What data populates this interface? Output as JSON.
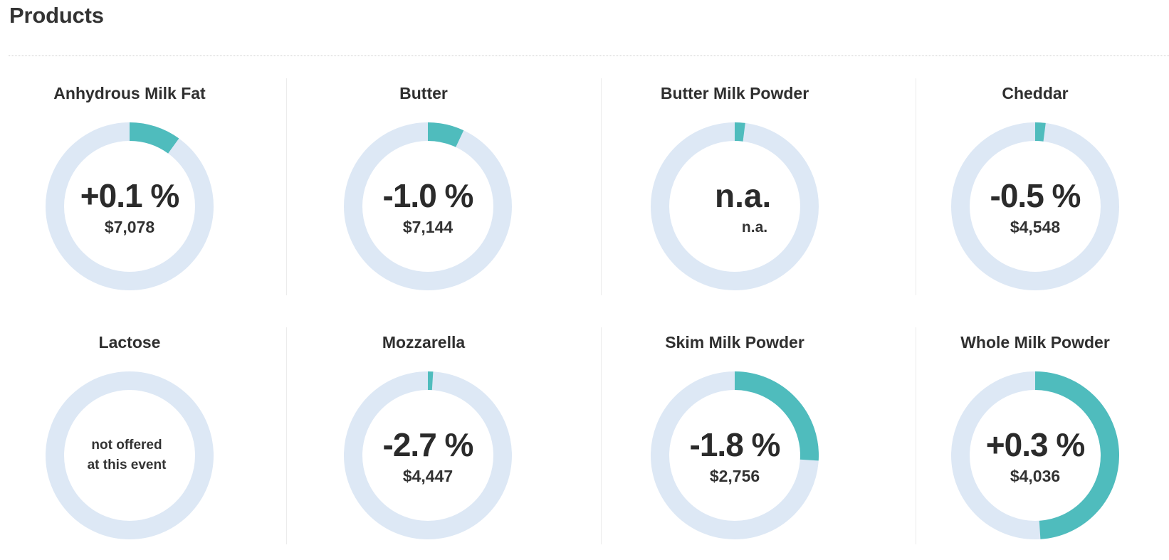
{
  "page": {
    "title": "Products"
  },
  "colors": {
    "ring_track": "#dde8f5",
    "ring_fill": "#4fbcbd"
  },
  "products": [
    {
      "name": "Anhydrous Milk Fat",
      "change": "+0.1 %",
      "price": "$7,078",
      "fill_fraction": 0.1
    },
    {
      "name": "Butter",
      "change": "-1.0 %",
      "price": "$7,144",
      "fill_fraction": 0.07
    },
    {
      "name": "Butter Milk Powder",
      "change": "n.a.",
      "price": "n.a.",
      "fill_fraction": 0.02
    },
    {
      "name": "Cheddar",
      "change": "-0.5 %",
      "price": "$4,548",
      "fill_fraction": 0.02
    },
    {
      "name": "Lactose",
      "note_line1": "not offered",
      "note_line2": "at this event",
      "fill_fraction": 0
    },
    {
      "name": "Mozzarella",
      "change": "-2.7 %",
      "price": "$4,447",
      "fill_fraction": 0.01
    },
    {
      "name": "Skim Milk Powder",
      "change": "-1.8 %",
      "price": "$2,756",
      "fill_fraction": 0.26
    },
    {
      "name": "Whole Milk Powder",
      "change": "+0.3 %",
      "price": "$4,036",
      "fill_fraction": 0.49
    }
  ]
}
